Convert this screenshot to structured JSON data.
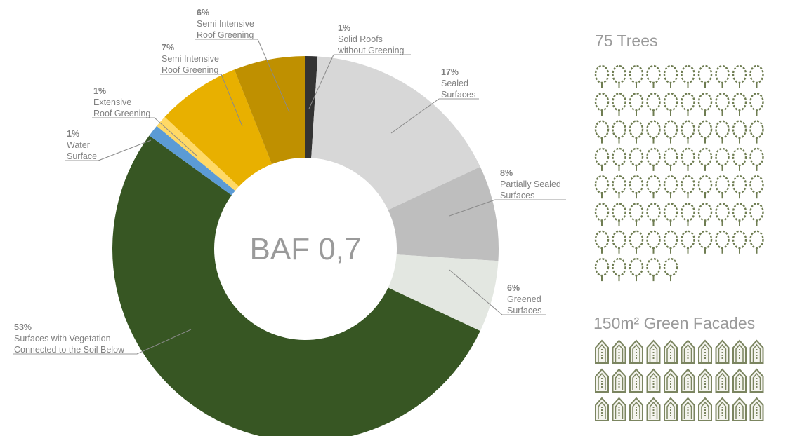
{
  "chart_data": {
    "type": "donut",
    "center_label": "BAF 0,7",
    "categories": [
      "Solid Roofs\nwithout Greening",
      "Sealed\nSurfaces",
      "Partially Sealed\nSurfaces",
      "Greened\nSurfaces",
      "Surfaces with Vegetation\nConnected to the Soil Below",
      "Water\nSurface",
      "Extensive\nRoof Greening",
      "Semi Intensive\nRoof Greening",
      "Semi Intensive\nRoof Greening"
    ],
    "values": [
      1,
      17,
      8,
      6,
      53,
      1,
      1,
      7,
      6
    ],
    "value_labels": [
      "1%",
      "17%",
      "8%",
      "6%",
      "53%",
      "1%",
      "1%",
      "7%",
      "6%"
    ],
    "colors": [
      "#333333",
      "#d7d7d7",
      "#bebebe",
      "#e3e7e1",
      "#375623",
      "#5b9bd5",
      "#ffd966",
      "#e8b000",
      "#bf9000"
    ]
  },
  "trees": {
    "title": "75 Trees",
    "count": 75
  },
  "facades": {
    "title": "150m² Green Facades",
    "area": 150,
    "icons": 30
  }
}
